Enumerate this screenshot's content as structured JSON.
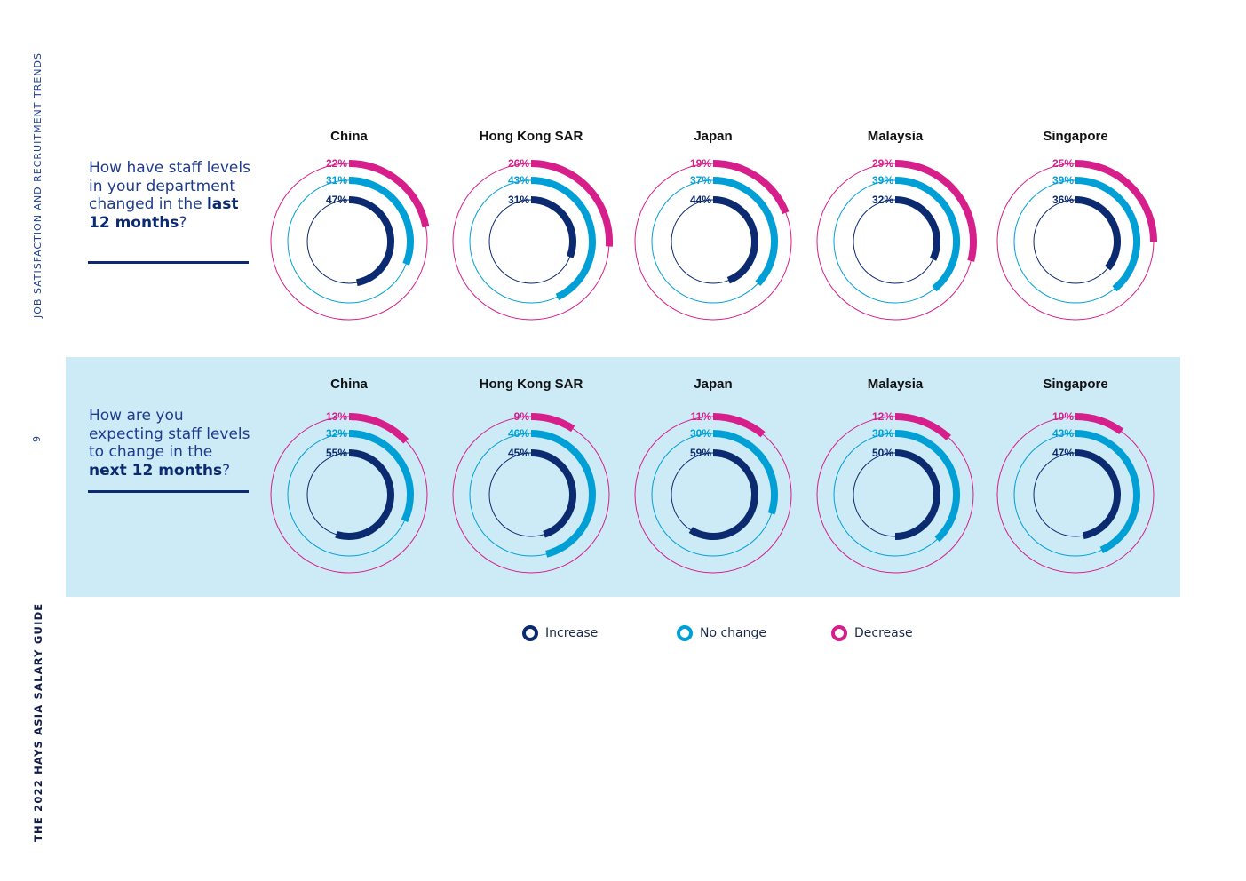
{
  "sidebar": {
    "section": "JOB SATISFACTION AND RECRUITMENT TRENDS",
    "page_number": "9",
    "guide": "THE 2022 HAYS ASIA SALARY GUIDE"
  },
  "questions": [
    {
      "pre": "How have staff levels in your department changed in the ",
      "bold": "last 12 months",
      "post": "?"
    },
    {
      "pre": "How are you expecting staff levels to change in the ",
      "bold": "next 12 months",
      "post": "?"
    }
  ],
  "legend": [
    {
      "label": "Increase",
      "color": "#0b2a6f"
    },
    {
      "label": "No change",
      "color": "#00a0d6"
    },
    {
      "label": "Decrease",
      "color": "#d61f8a"
    }
  ],
  "chart_data": [
    {
      "type": "radial-bar",
      "categories": [
        "China",
        "Hong Kong SAR",
        "Japan",
        "Malaysia",
        "Singapore"
      ],
      "series": [
        {
          "name": "Increase",
          "values": [
            47,
            31,
            44,
            32,
            36
          ]
        },
        {
          "name": "No change",
          "values": [
            31,
            43,
            37,
            39,
            39
          ]
        },
        {
          "name": "Decrease",
          "values": [
            22,
            26,
            19,
            29,
            25
          ]
        }
      ],
      "unit": "%"
    },
    {
      "type": "radial-bar",
      "categories": [
        "China",
        "Hong Kong SAR",
        "Japan",
        "Malaysia",
        "Singapore"
      ],
      "series": [
        {
          "name": "Increase",
          "values": [
            55,
            45,
            59,
            50,
            47
          ]
        },
        {
          "name": "No change",
          "values": [
            32,
            46,
            30,
            38,
            43
          ]
        },
        {
          "name": "Decrease",
          "values": [
            13,
            9,
            11,
            12,
            10
          ]
        }
      ],
      "unit": "%"
    }
  ]
}
